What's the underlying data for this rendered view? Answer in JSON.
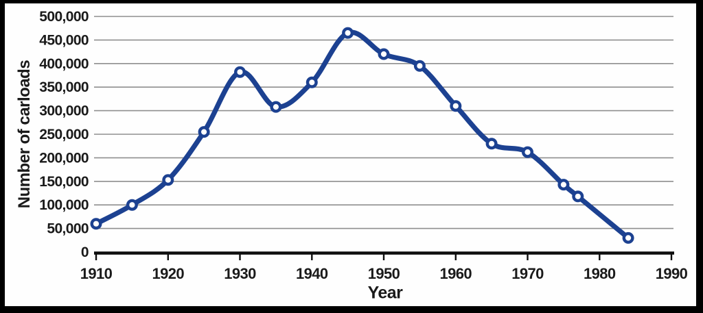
{
  "chart_data": {
    "type": "line",
    "title": "",
    "xlabel": "Year",
    "ylabel": "Number of carloads",
    "x": [
      1910,
      1915,
      1920,
      1925,
      1930,
      1935,
      1940,
      1945,
      1950,
      1955,
      1960,
      1965,
      1970,
      1975,
      1977,
      1984
    ],
    "y": [
      60000,
      100000,
      153000,
      255000,
      382000,
      308000,
      360000,
      465000,
      420000,
      395000,
      310000,
      230000,
      212000,
      143000,
      118000,
      30000
    ],
    "xlim": [
      1910,
      1990
    ],
    "ylim": [
      0,
      500000
    ],
    "x_ticks": [
      1910,
      1920,
      1930,
      1940,
      1950,
      1960,
      1970,
      1980,
      1990
    ],
    "x_tick_labels": [
      "1910",
      "1920",
      "1930",
      "1940",
      "1950",
      "1960",
      "1970",
      "1980",
      "1990"
    ],
    "y_ticks": [
      0,
      50000,
      100000,
      150000,
      200000,
      250000,
      300000,
      350000,
      400000,
      450000,
      500000
    ],
    "y_tick_labels": [
      "0",
      "50,000",
      "100,000",
      "150,000",
      "200,000",
      "250,000",
      "300,000",
      "350,000",
      "400,000",
      "450,000",
      "500,000"
    ],
    "grid": "horizontal",
    "legend": "none",
    "line_color": "#1c4191",
    "marker_style": "open-circle",
    "marker_fill": "#ffffff",
    "grid_color": "#8e8e8e",
    "axis_color": "#0d0d0d",
    "text_color": "#1a1a1a",
    "frame_border_color": "#000000",
    "background": "#fefefe"
  }
}
